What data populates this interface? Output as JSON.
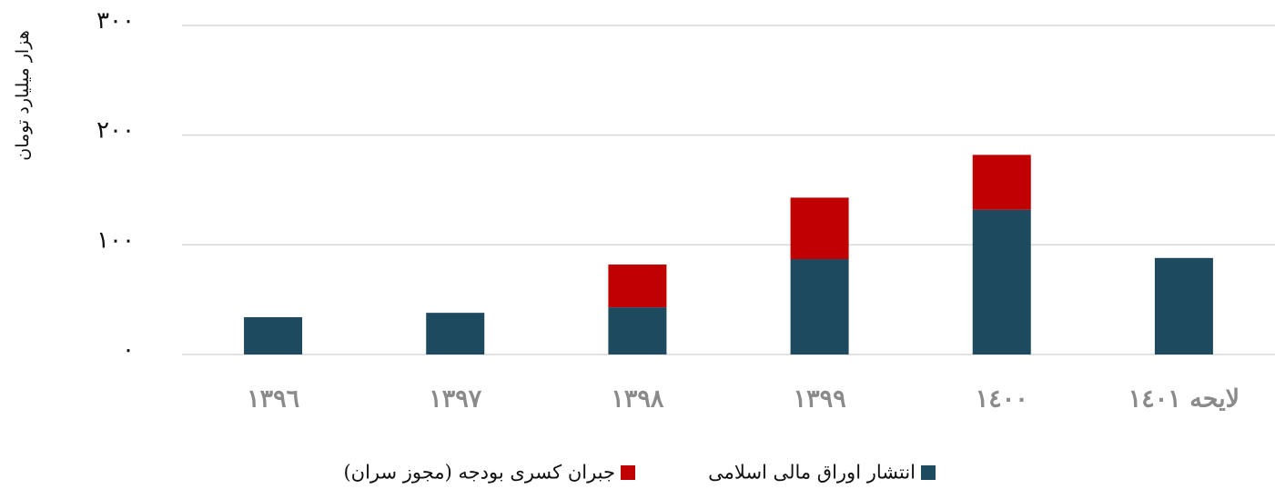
{
  "chart_data": {
    "type": "stacked_bar",
    "y_label": "هزار میلیارد تومان",
    "categories": [
      "١٣٩٦",
      "١٣٩٧",
      "١٣٩٨",
      "١٣٩٩",
      "١٤٠٠",
      "لایحه ١٤٠١"
    ],
    "series": [
      {
        "name": "انتشار اوراق مالی اسلامی",
        "color": "#1e4a5f",
        "values": [
          34,
          38,
          43,
          87,
          132,
          88
        ]
      },
      {
        "name": "جبران کسری بودجه (مجوز سران)",
        "color": "#c00000",
        "values": [
          null,
          null,
          39,
          56,
          50,
          null
        ]
      }
    ],
    "ylim": [
      0,
      300
    ],
    "yticks": [
      {
        "value": 0,
        "label": "٠"
      },
      {
        "value": 100,
        "label": "١٠٠"
      },
      {
        "value": 200,
        "label": "٢٠٠"
      },
      {
        "value": 300,
        "label": "٣٠٠"
      }
    ],
    "grid": true
  }
}
